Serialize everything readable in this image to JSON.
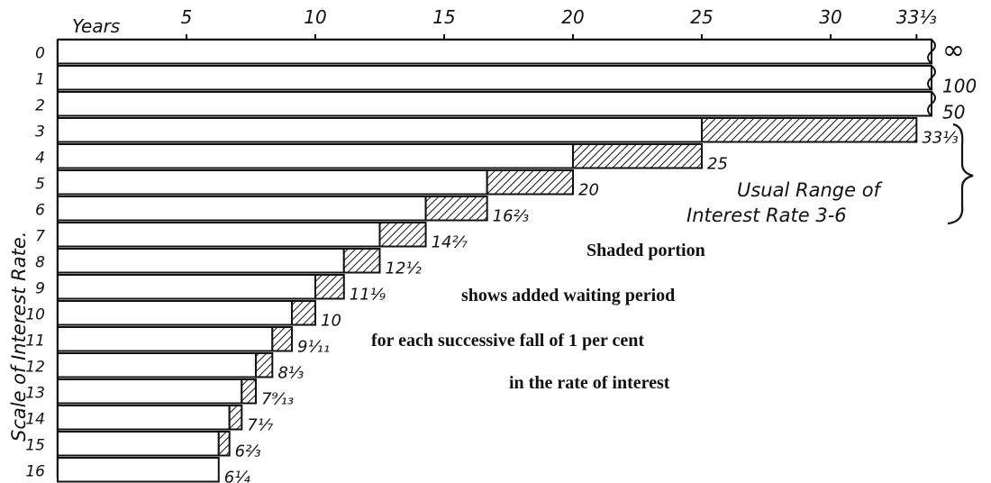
{
  "chart_data": {
    "type": "bar",
    "orientation": "horizontal",
    "x_axis_label": "Years",
    "y_axis_label": "Scale of Interest Rate.",
    "x_ticks": [
      "5",
      "10",
      "15",
      "20",
      "25",
      "30",
      "33⅓"
    ],
    "x_tick_values": [
      5,
      10,
      15,
      20,
      25,
      30,
      33.333
    ],
    "xlim": [
      0,
      33.333
    ],
    "rates": [
      {
        "rate": "0",
        "years": null,
        "added": null,
        "label": "∞"
      },
      {
        "rate": "1",
        "years": null,
        "added": null,
        "label": "100"
      },
      {
        "rate": "2",
        "years": null,
        "added": null,
        "label": "50"
      },
      {
        "rate": "3",
        "years": 33.333,
        "added": 8.333,
        "label": "33⅓"
      },
      {
        "rate": "4",
        "years": 25,
        "added": 5,
        "label": "25"
      },
      {
        "rate": "5",
        "years": 20,
        "added": 3.333,
        "label": "20"
      },
      {
        "rate": "6",
        "years": 16.667,
        "added": 2.381,
        "label": "16⅔"
      },
      {
        "rate": "7",
        "years": 14.286,
        "added": 1.786,
        "label": "14²⁄₇"
      },
      {
        "rate": "8",
        "years": 12.5,
        "added": 1.389,
        "label": "12½"
      },
      {
        "rate": "9",
        "years": 11.111,
        "added": 1.111,
        "label": "11⅑"
      },
      {
        "rate": "10",
        "years": 10,
        "added": 0.909,
        "label": "10"
      },
      {
        "rate": "11",
        "years": 9.091,
        "added": 0.758,
        "label": "9¹⁄₁₁"
      },
      {
        "rate": "12",
        "years": 8.333,
        "added": 0.641,
        "label": "8⅓"
      },
      {
        "rate": "13",
        "years": 7.692,
        "added": 0.549,
        "label": "7⁹⁄₁₃"
      },
      {
        "rate": "14",
        "years": 7.143,
        "added": 0.476,
        "label": "7⅐"
      },
      {
        "rate": "15",
        "years": 6.667,
        "added": 0.417,
        "label": "6⅔"
      },
      {
        "rate": "16",
        "years": 6.25,
        "added": null,
        "label": "6¼"
      }
    ],
    "range_note": [
      "Usual Range of",
      "Interest Rate 3-6"
    ],
    "annotation": [
      "Shaded portion",
      "shows added waiting period",
      "for each successive fall of 1 per cent",
      "in the rate of interest"
    ],
    "colors": {
      "ink": "#111111",
      "paper": "#ffffff"
    }
  }
}
